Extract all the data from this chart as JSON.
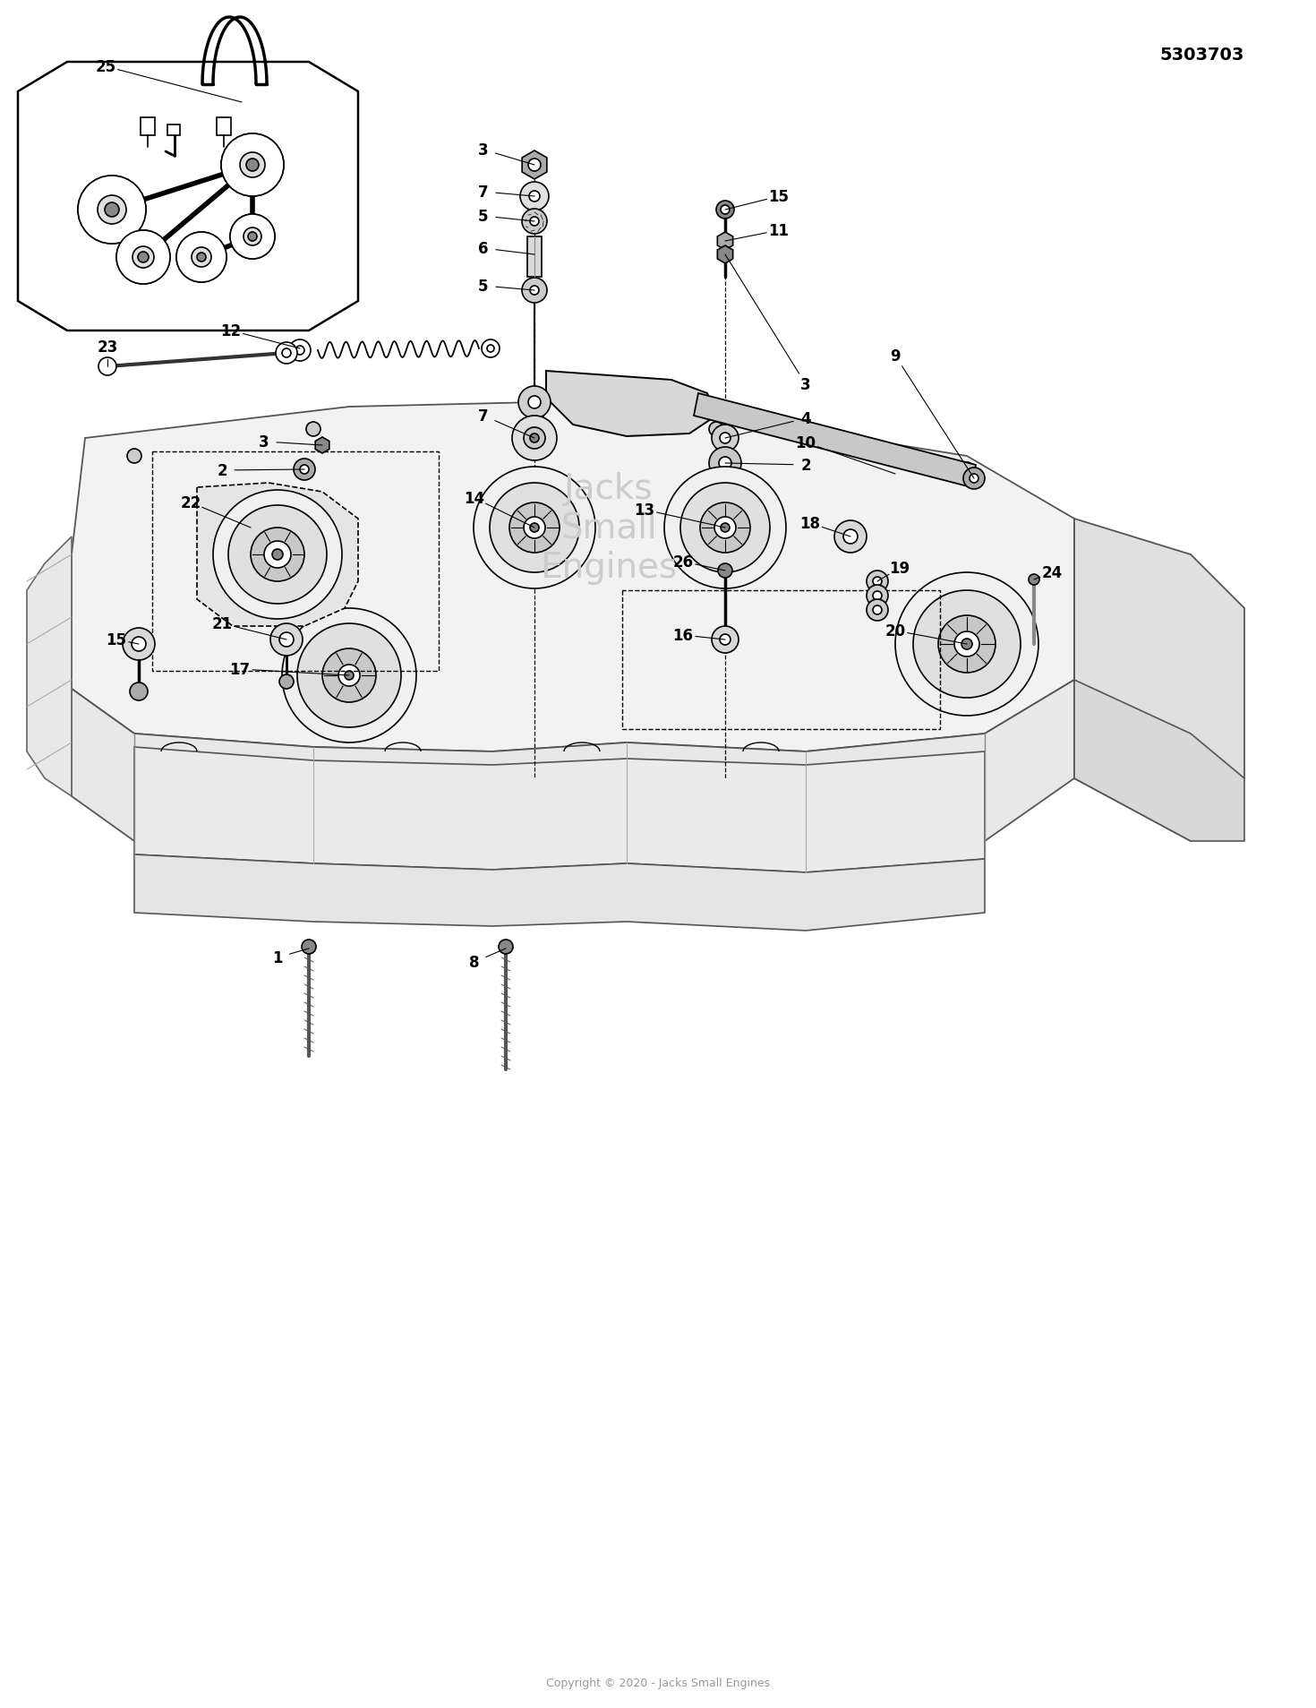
{
  "title": "5303703",
  "copyright": "Copyright © 2020 - Jacks Small Engines",
  "bg_color": "#ffffff",
  "lc": "#1a1a1a",
  "gray1": "#888888",
  "gray2": "#bbbbbb",
  "gray3": "#dddddd",
  "gray4": "#eeeeee"
}
